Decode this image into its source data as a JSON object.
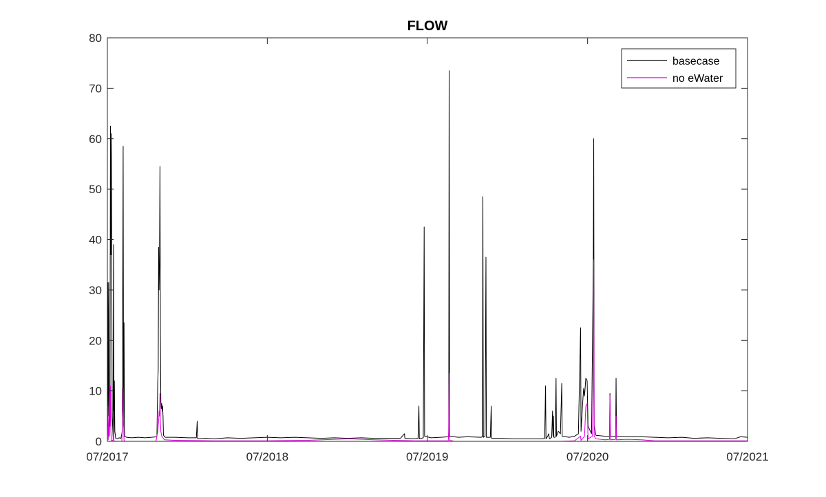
{
  "chart_data": {
    "type": "line",
    "title": "FLOW",
    "xlabel": "",
    "ylabel": "",
    "ylim": [
      0,
      80
    ],
    "xlim": [
      "2017-07-01",
      "2021-07-01"
    ],
    "yticks": [
      0,
      10,
      20,
      30,
      40,
      50,
      60,
      70,
      80
    ],
    "xticks": [
      {
        "date": "2017-07-01",
        "label": "07/2017"
      },
      {
        "date": "2018-07-01",
        "label": "07/2018"
      },
      {
        "date": "2019-07-01",
        "label": "07/2019"
      },
      {
        "date": "2020-07-01",
        "label": "07/2020"
      },
      {
        "date": "2021-07-01",
        "label": "07/2021"
      }
    ],
    "grid": false,
    "legend_position": "top-right",
    "series": [
      {
        "name": "basecase",
        "color": "#000000",
        "points": [
          [
            "2017-07-01",
            0.8
          ],
          [
            "2017-07-02",
            31.5
          ],
          [
            "2017-07-03",
            5.0
          ],
          [
            "2017-07-04",
            31.5
          ],
          [
            "2017-07-05",
            1.0
          ],
          [
            "2017-07-07",
            10.0
          ],
          [
            "2017-07-08",
            62.5
          ],
          [
            "2017-07-09",
            37.0
          ],
          [
            "2017-07-10",
            61.0
          ],
          [
            "2017-07-11",
            35.0
          ],
          [
            "2017-07-12",
            5.0
          ],
          [
            "2017-07-14",
            1.0
          ],
          [
            "2017-07-15",
            39.0
          ],
          [
            "2017-07-16",
            1.5
          ],
          [
            "2017-07-17",
            12.0
          ],
          [
            "2017-07-18",
            2.0
          ],
          [
            "2017-07-20",
            0.6
          ],
          [
            "2017-07-24",
            0.5
          ],
          [
            "2017-07-28",
            0.7
          ],
          [
            "2017-08-01",
            0.6
          ],
          [
            "2017-08-04",
            2.0
          ],
          [
            "2017-08-06",
            58.5
          ],
          [
            "2017-08-07",
            3.0
          ],
          [
            "2017-08-08",
            23.5
          ],
          [
            "2017-08-09",
            1.0
          ],
          [
            "2017-08-14",
            0.8
          ],
          [
            "2017-08-25",
            0.7
          ],
          [
            "2017-09-10",
            0.8
          ],
          [
            "2017-09-25",
            0.7
          ],
          [
            "2017-10-10",
            0.8
          ],
          [
            "2017-10-22",
            0.9
          ],
          [
            "2017-10-24",
            12.0
          ],
          [
            "2017-10-25",
            14.0
          ],
          [
            "2017-10-26",
            38.5
          ],
          [
            "2017-10-27",
            30.0
          ],
          [
            "2017-10-28",
            35.0
          ],
          [
            "2017-10-29",
            54.5
          ],
          [
            "2017-10-30",
            21.0
          ],
          [
            "2017-10-31",
            8.0
          ],
          [
            "2017-11-01",
            6.5
          ],
          [
            "2017-11-02",
            7.5
          ],
          [
            "2017-11-03",
            6.0
          ],
          [
            "2017-11-04",
            7.0
          ],
          [
            "2017-11-05",
            5.0
          ],
          [
            "2017-11-06",
            1.2
          ],
          [
            "2017-11-10",
            0.8
          ],
          [
            "2017-12-01",
            0.8
          ],
          [
            "2018-01-01",
            0.7
          ],
          [
            "2018-01-20",
            0.7
          ],
          [
            "2018-01-22",
            4.0
          ],
          [
            "2018-01-23",
            0.5
          ],
          [
            "2018-02-10",
            0.6
          ],
          [
            "2018-03-01",
            0.5
          ],
          [
            "2018-04-01",
            0.7
          ],
          [
            "2018-05-01",
            0.6
          ],
          [
            "2018-06-01",
            0.7
          ],
          [
            "2018-07-01",
            0.8
          ],
          [
            "2018-08-01",
            0.7
          ],
          [
            "2018-09-01",
            0.8
          ],
          [
            "2018-10-01",
            0.7
          ],
          [
            "2018-11-01",
            0.6
          ],
          [
            "2018-12-01",
            0.7
          ],
          [
            "2019-01-01",
            0.6
          ],
          [
            "2019-02-01",
            0.7
          ],
          [
            "2019-03-01",
            0.6
          ],
          [
            "2019-04-01",
            0.6
          ],
          [
            "2019-05-01",
            0.6
          ],
          [
            "2019-05-10",
            1.5
          ],
          [
            "2019-05-11",
            0.6
          ],
          [
            "2019-06-01",
            0.5
          ],
          [
            "2019-06-10",
            0.6
          ],
          [
            "2019-06-12",
            7.0
          ],
          [
            "2019-06-13",
            0.5
          ],
          [
            "2019-06-22",
            0.7
          ],
          [
            "2019-06-24",
            42.5
          ],
          [
            "2019-06-25",
            1.0
          ],
          [
            "2019-07-10",
            0.7
          ],
          [
            "2019-08-01",
            0.8
          ],
          [
            "2019-08-19",
            0.9
          ],
          [
            "2019-08-20",
            73.5
          ],
          [
            "2019-08-21",
            1.0
          ],
          [
            "2019-09-10",
            0.8
          ],
          [
            "2019-10-01",
            0.9
          ],
          [
            "2019-11-01",
            0.8
          ],
          [
            "2019-11-04",
            0.9
          ],
          [
            "2019-11-05",
            48.5
          ],
          [
            "2019-11-06",
            0.8
          ],
          [
            "2019-11-10",
            1.0
          ],
          [
            "2019-11-12",
            36.5
          ],
          [
            "2019-11-13",
            0.8
          ],
          [
            "2019-11-22",
            0.8
          ],
          [
            "2019-11-24",
            7.0
          ],
          [
            "2019-11-25",
            0.6
          ],
          [
            "2019-12-15",
            0.6
          ],
          [
            "2020-01-15",
            0.5
          ],
          [
            "2020-02-15",
            0.5
          ],
          [
            "2020-03-20",
            0.5
          ],
          [
            "2020-03-25",
            0.6
          ],
          [
            "2020-03-27",
            11.0
          ],
          [
            "2020-03-28",
            0.5
          ],
          [
            "2020-04-01",
            1.0
          ],
          [
            "2020-04-03",
            1.5
          ],
          [
            "2020-04-05",
            0.5
          ],
          [
            "2020-04-10",
            0.8
          ],
          [
            "2020-04-12",
            6.0
          ],
          [
            "2020-04-13",
            1.0
          ],
          [
            "2020-04-14",
            5.0
          ],
          [
            "2020-04-15",
            0.8
          ],
          [
            "2020-04-18",
            0.8
          ],
          [
            "2020-04-20",
            12.5
          ],
          [
            "2020-04-21",
            1.0
          ],
          [
            "2020-04-25",
            2.0
          ],
          [
            "2020-04-30",
            1.5
          ],
          [
            "2020-05-03",
            11.5
          ],
          [
            "2020-05-04",
            1.0
          ],
          [
            "2020-05-20",
            0.8
          ],
          [
            "2020-06-01",
            1.0
          ],
          [
            "2020-06-10",
            1.5
          ],
          [
            "2020-06-15",
            22.5
          ],
          [
            "2020-06-16",
            2.0
          ],
          [
            "2020-06-20",
            8.0
          ],
          [
            "2020-06-22",
            10.5
          ],
          [
            "2020-06-24",
            9.0
          ],
          [
            "2020-06-27",
            12.5
          ],
          [
            "2020-06-30",
            12.0
          ],
          [
            "2020-07-02",
            3.0
          ],
          [
            "2020-07-10",
            1.5
          ],
          [
            "2020-07-14",
            35.0
          ],
          [
            "2020-07-15",
            60.0
          ],
          [
            "2020-07-16",
            3.0
          ],
          [
            "2020-07-20",
            1.2
          ],
          [
            "2020-08-10",
            1.0
          ],
          [
            "2020-08-20",
            1.0
          ],
          [
            "2020-08-21",
            9.5
          ],
          [
            "2020-08-22",
            1.0
          ],
          [
            "2020-09-03",
            1.0
          ],
          [
            "2020-09-04",
            12.5
          ],
          [
            "2020-09-05",
            1.0
          ],
          [
            "2020-10-01",
            0.9
          ],
          [
            "2020-11-01",
            0.9
          ],
          [
            "2020-12-01",
            0.8
          ],
          [
            "2021-01-01",
            0.7
          ],
          [
            "2021-02-01",
            0.8
          ],
          [
            "2021-03-01",
            0.6
          ],
          [
            "2021-04-01",
            0.7
          ],
          [
            "2021-05-01",
            0.6
          ],
          [
            "2021-06-01",
            0.5
          ],
          [
            "2021-06-15",
            0.9
          ],
          [
            "2021-07-01",
            0.8
          ]
        ]
      },
      {
        "name": "no eWater",
        "color": "#e000e0",
        "points": [
          [
            "2017-07-01",
            4.5
          ],
          [
            "2017-07-02",
            7.0
          ],
          [
            "2017-07-03",
            0.3
          ],
          [
            "2017-07-05",
            6.0
          ],
          [
            "2017-07-06",
            10.5
          ],
          [
            "2017-07-07",
            3.0
          ],
          [
            "2017-07-08",
            11.0
          ],
          [
            "2017-07-09",
            2.0
          ],
          [
            "2017-07-10",
            0.2
          ],
          [
            "2017-07-14",
            0.2
          ],
          [
            "2017-07-15",
            6.0
          ],
          [
            "2017-07-16",
            0.1
          ],
          [
            "2017-07-20",
            0.0
          ],
          [
            "2017-08-03",
            0.0
          ],
          [
            "2017-08-05",
            6.0
          ],
          [
            "2017-08-06",
            10.5
          ],
          [
            "2017-08-07",
            4.0
          ],
          [
            "2017-08-08",
            0.2
          ],
          [
            "2017-08-10",
            0.0
          ],
          [
            "2017-10-20",
            0.0
          ],
          [
            "2017-10-24",
            2.0
          ],
          [
            "2017-10-26",
            4.0
          ],
          [
            "2017-10-27",
            6.0
          ],
          [
            "2017-10-28",
            5.0
          ],
          [
            "2017-10-29",
            9.5
          ],
          [
            "2017-10-30",
            4.0
          ],
          [
            "2017-10-31",
            2.0
          ],
          [
            "2017-11-02",
            1.0
          ],
          [
            "2017-11-04",
            0.8
          ],
          [
            "2017-11-08",
            0.3
          ],
          [
            "2017-12-01",
            0.2
          ],
          [
            "2018-03-01",
            0.1
          ],
          [
            "2018-07-01",
            0.1
          ],
          [
            "2018-10-01",
            0.2
          ],
          [
            "2018-12-01",
            0.4
          ],
          [
            "2019-01-01",
            0.5
          ],
          [
            "2019-03-01",
            0.3
          ],
          [
            "2019-06-01",
            0.1
          ],
          [
            "2019-08-18",
            0.1
          ],
          [
            "2019-08-19",
            2.0
          ],
          [
            "2019-08-20",
            13.5
          ],
          [
            "2019-08-21",
            0.2
          ],
          [
            "2019-09-01",
            0.0
          ],
          [
            "2020-05-01",
            0.0
          ],
          [
            "2020-06-01",
            0.1
          ],
          [
            "2020-06-15",
            1.0
          ],
          [
            "2020-06-16",
            0.2
          ],
          [
            "2020-06-24",
            1.0
          ],
          [
            "2020-06-27",
            7.0
          ],
          [
            "2020-06-30",
            7.5
          ],
          [
            "2020-07-02",
            0.5
          ],
          [
            "2020-07-12",
            1.0
          ],
          [
            "2020-07-14",
            10.0
          ],
          [
            "2020-07-15",
            36.0
          ],
          [
            "2020-07-16",
            1.0
          ],
          [
            "2020-07-20",
            0.5
          ],
          [
            "2020-08-10",
            0.3
          ],
          [
            "2020-08-20",
            0.4
          ],
          [
            "2020-08-21",
            9.0
          ],
          [
            "2020-08-22",
            0.3
          ],
          [
            "2020-09-03",
            0.4
          ],
          [
            "2020-09-04",
            5.0
          ],
          [
            "2020-09-05",
            0.3
          ],
          [
            "2020-10-01",
            0.4
          ],
          [
            "2020-11-01",
            0.3
          ],
          [
            "2020-12-01",
            0.1
          ],
          [
            "2021-03-01",
            0.1
          ],
          [
            "2021-07-01",
            0.1
          ]
        ]
      }
    ]
  }
}
